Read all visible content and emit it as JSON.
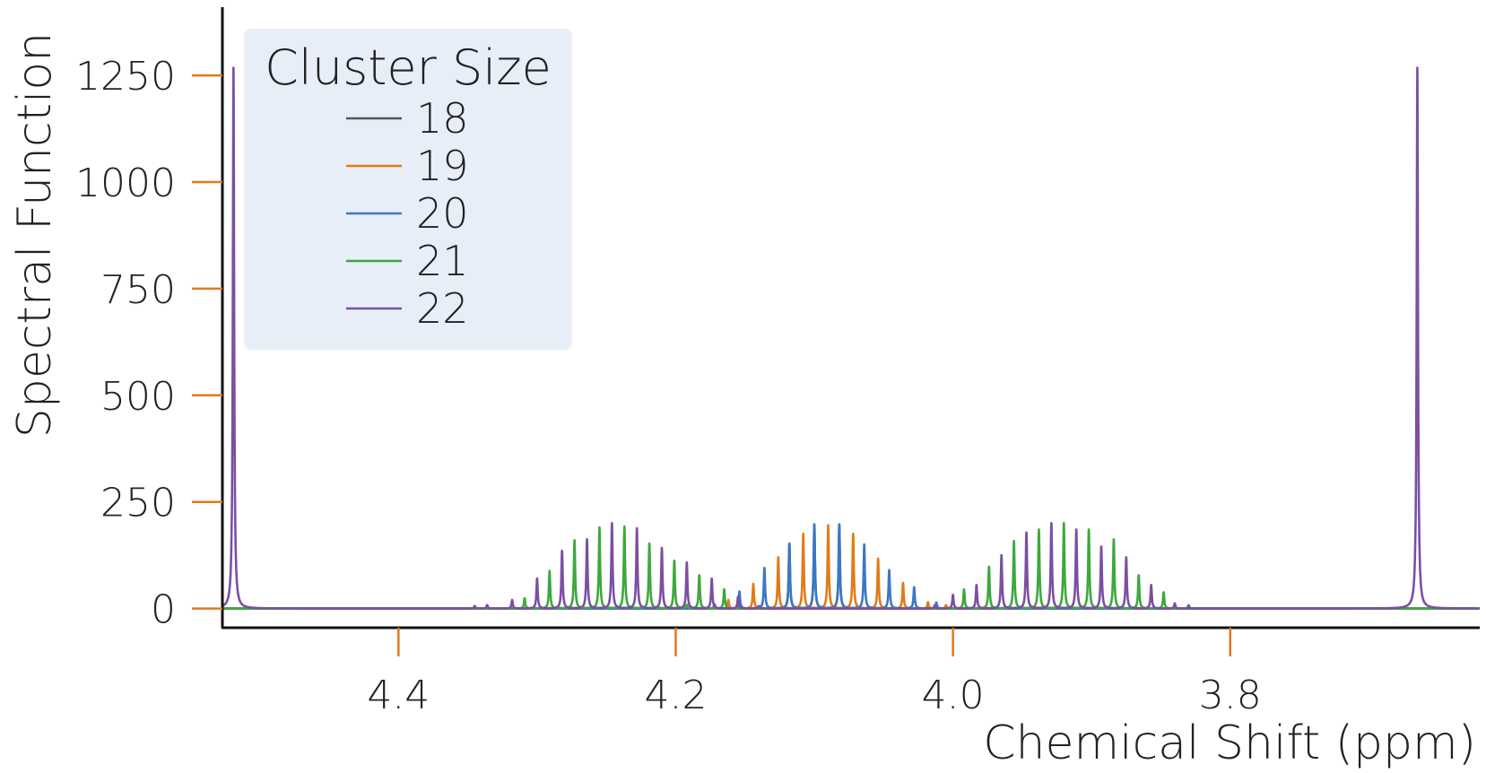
{
  "chart_data": {
    "type": "line",
    "xlabel": "Chemical Shift (ppm)",
    "ylabel": "Spectral Function",
    "xlim": [
      4.527,
      3.62
    ],
    "ylim": [
      -45,
      1410
    ],
    "x_reversed": true,
    "xticks": [
      {
        "value": 4.4,
        "label": "4.4"
      },
      {
        "value": 4.2,
        "label": "4.2"
      },
      {
        "value": 4.0,
        "label": "4.0"
      },
      {
        "value": 3.8,
        "label": "3.8"
      }
    ],
    "yticks": [
      {
        "value": 0,
        "label": "0"
      },
      {
        "value": 250,
        "label": "250"
      },
      {
        "value": 500,
        "label": "500"
      },
      {
        "value": 750,
        "label": "750"
      },
      {
        "value": 1000,
        "label": "1000"
      },
      {
        "value": 1250,
        "label": "1250"
      }
    ],
    "tick_color": "#e07b1a",
    "grid": false,
    "legend": {
      "title": "Cluster Size",
      "placement": "top-left",
      "background": "#e8eef8",
      "entries": [
        {
          "name": "18",
          "color": "#555555"
        },
        {
          "name": "19",
          "color": "#e07b1a"
        },
        {
          "name": "20",
          "color": "#3a78c2"
        },
        {
          "name": "21",
          "color": "#3da83d"
        },
        {
          "name": "22",
          "color": "#7b4fa3"
        }
      ]
    },
    "series": [
      {
        "name": "18",
        "color": "#555555",
        "peaks": [
          [
            4.1,
            197
          ],
          [
            4.082,
            197
          ],
          [
            4.118,
            152
          ]
        ]
      },
      {
        "name": "19",
        "color": "#e07b1a",
        "peaks": [
          [
            4.09,
            195
          ],
          [
            4.108,
            175
          ],
          [
            4.072,
            175
          ],
          [
            4.126,
            120
          ],
          [
            4.054,
            117
          ],
          [
            4.144,
            58
          ],
          [
            4.036,
            60
          ],
          [
            4.162,
            20
          ],
          [
            4.018,
            15
          ],
          [
            4.005,
            8
          ]
        ]
      },
      {
        "name": "20",
        "color": "#3a78c2",
        "peaks": [
          [
            4.1,
            197
          ],
          [
            4.082,
            197
          ],
          [
            4.118,
            152
          ],
          [
            4.064,
            150
          ],
          [
            4.136,
            95
          ],
          [
            4.046,
            90
          ],
          [
            4.154,
            40
          ],
          [
            4.028,
            50
          ],
          [
            4.172,
            10
          ],
          [
            4.012,
            14
          ]
        ]
      },
      {
        "name": "21",
        "color": "#3da83d",
        "peaks": [
          [
            4.237,
            192
          ],
          [
            4.255,
            190
          ],
          [
            4.219,
            152
          ],
          [
            4.273,
            160
          ],
          [
            4.201,
            112
          ],
          [
            4.291,
            88
          ],
          [
            4.183,
            78
          ],
          [
            4.309,
            24
          ],
          [
            4.165,
            45
          ],
          [
            4.192,
            8
          ],
          [
            3.92,
            200
          ],
          [
            3.938,
            185
          ],
          [
            3.902,
            185
          ],
          [
            3.956,
            158
          ],
          [
            3.884,
            162
          ],
          [
            3.974,
            98
          ],
          [
            3.866,
            78
          ],
          [
            3.992,
            45
          ],
          [
            3.848,
            38
          ],
          [
            3.83,
            8
          ]
        ]
      },
      {
        "name": "22",
        "color": "#7b4fa3",
        "peaks": [
          [
            4.519,
            1268
          ],
          [
            3.665,
            1268
          ],
          [
            4.246,
            200
          ],
          [
            4.264,
            162
          ],
          [
            4.228,
            188
          ],
          [
            4.282,
            135
          ],
          [
            4.21,
            142
          ],
          [
            4.3,
            70
          ],
          [
            4.192,
            108
          ],
          [
            4.318,
            20
          ],
          [
            4.174,
            70
          ],
          [
            4.336,
            8
          ],
          [
            4.155,
            28
          ],
          [
            4.345,
            6
          ],
          [
            4.14,
            6
          ],
          [
            3.911,
            185
          ],
          [
            3.929,
            200
          ],
          [
            3.893,
            145
          ],
          [
            3.947,
            178
          ],
          [
            3.875,
            120
          ],
          [
            3.965,
            125
          ],
          [
            3.857,
            55
          ],
          [
            3.983,
            55
          ],
          [
            3.84,
            12
          ],
          [
            4.0,
            32
          ],
          [
            4.013,
            8
          ],
          [
            3.83,
            6
          ]
        ]
      }
    ]
  }
}
